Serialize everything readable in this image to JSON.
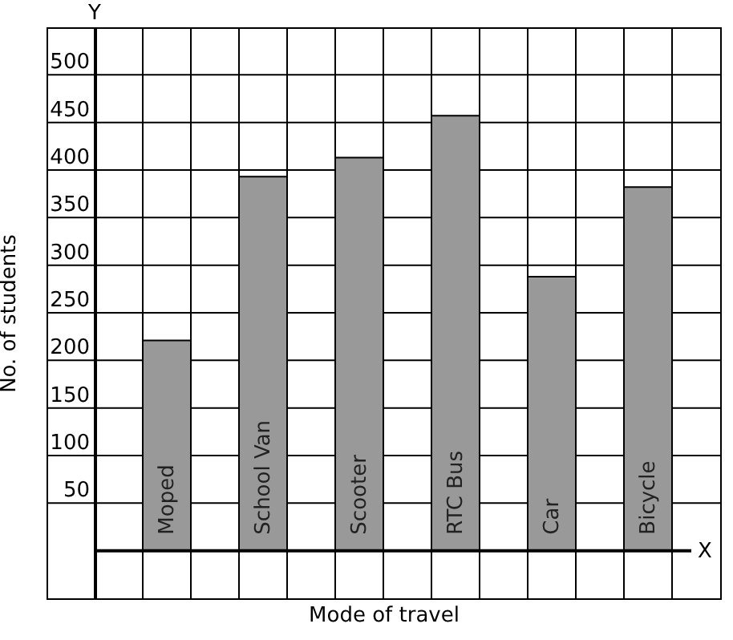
{
  "chart_data": {
    "type": "bar",
    "xlabel": "Mode of travel",
    "ylabel": "No. of students",
    "categories": [
      "Moped",
      "School Van",
      "Scooter",
      "RTC Bus",
      "Car",
      "Bicycle"
    ],
    "values": [
      221,
      393,
      413,
      457,
      288,
      382
    ],
    "color": "#999999",
    "ylim": [
      -50,
      550
    ],
    "yticks": [
      50,
      100,
      150,
      200,
      250,
      300,
      350,
      400,
      450,
      500
    ],
    "grid": true,
    "annotations": [
      "Y",
      "X"
    ]
  }
}
